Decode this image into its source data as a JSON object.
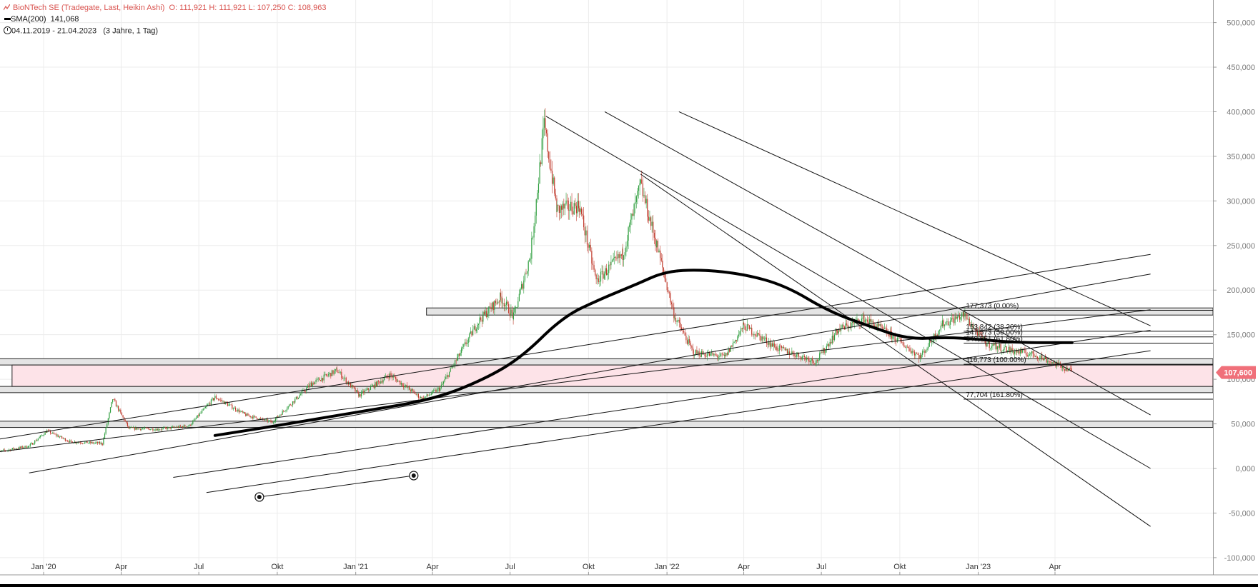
{
  "legend": {
    "instrument": "BioNTech SE (Tradegate, Last, Heikin Ashi)",
    "ohlc": "O: 111,921  H: 111,921  L: 107,250  C: 108,963",
    "sma_label": "SMA(200)",
    "sma_value": "141,068",
    "range": "04.11.2019 - 21.04.2023",
    "interval": "(3 Jahre, 1 Tag)"
  },
  "colors": {
    "up": "#2e9e3e",
    "down": "#c0392b",
    "sma": "#000000",
    "price_label_bg": "#f0707a",
    "zone_fill": "#fde3e8",
    "zone_border": "#222222",
    "band_fill": "#e4e4e4"
  },
  "current_price_label": "107,600",
  "chart_data": {
    "type": "candlestick",
    "title": "BioNTech SE (Tradegate, Last, Heikin Ashi)",
    "x_range": [
      "2019-11-04",
      "2023-04-21"
    ],
    "ylim": [
      -110000,
      510000
    ],
    "y_ticks": [
      -100000,
      -50000,
      0,
      50000,
      100000,
      150000,
      200000,
      250000,
      300000,
      350000,
      400000,
      450000,
      500000
    ],
    "y_tick_labels": [
      "-100,000",
      "-50,000",
      "0,000",
      "50,000",
      "100,000",
      "150,000",
      "200,000",
      "250,000",
      "300,000",
      "350,000",
      "400,000",
      "450,000",
      "500,000"
    ],
    "x_ticks": [
      {
        "date": "2020-01-01",
        "label": "Jan '20"
      },
      {
        "date": "2020-04-01",
        "label": "Apr"
      },
      {
        "date": "2020-07-01",
        "label": "Jul"
      },
      {
        "date": "2020-10-01",
        "label": "Okt"
      },
      {
        "date": "2021-01-01",
        "label": "Jan '21"
      },
      {
        "date": "2021-04-01",
        "label": "Apr"
      },
      {
        "date": "2021-07-01",
        "label": "Jul"
      },
      {
        "date": "2021-10-01",
        "label": "Okt"
      },
      {
        "date": "2022-01-01",
        "label": "Jan '22"
      },
      {
        "date": "2022-04-01",
        "label": "Apr"
      },
      {
        "date": "2022-07-01",
        "label": "Jul"
      },
      {
        "date": "2022-10-01",
        "label": "Okt"
      },
      {
        "date": "2023-01-01",
        "label": "Jan '23"
      },
      {
        "date": "2023-04-01",
        "label": "Apr"
      }
    ],
    "price_path": [
      [
        "2019-11-04",
        18000
      ],
      [
        "2019-12-15",
        25000
      ],
      [
        "2020-01-05",
        42000
      ],
      [
        "2020-02-01",
        30000
      ],
      [
        "2020-03-10",
        28000
      ],
      [
        "2020-03-22",
        78000
      ],
      [
        "2020-04-10",
        45000
      ],
      [
        "2020-05-15",
        44000
      ],
      [
        "2020-06-20",
        48000
      ],
      [
        "2020-07-20",
        80000
      ],
      [
        "2020-08-25",
        60000
      ],
      [
        "2020-09-25",
        52000
      ],
      [
        "2020-11-10",
        95000
      ],
      [
        "2020-12-10",
        110000
      ],
      [
        "2021-01-05",
        82000
      ],
      [
        "2021-02-10",
        105000
      ],
      [
        "2021-03-20",
        78000
      ],
      [
        "2021-04-10",
        90000
      ],
      [
        "2021-05-01",
        125000
      ],
      [
        "2021-05-25",
        165000
      ],
      [
        "2021-06-20",
        192000
      ],
      [
        "2021-07-05",
        170000
      ],
      [
        "2021-07-25",
        240000
      ],
      [
        "2021-08-10",
        385000
      ],
      [
        "2021-08-25",
        290000
      ],
      [
        "2021-09-20",
        295000
      ],
      [
        "2021-10-10",
        210000
      ],
      [
        "2021-11-10",
        240000
      ],
      [
        "2021-12-01",
        318000
      ],
      [
        "2021-12-20",
        250000
      ],
      [
        "2022-01-10",
        170000
      ],
      [
        "2022-02-01",
        130000
      ],
      [
        "2022-03-10",
        125000
      ],
      [
        "2022-04-01",
        160000
      ],
      [
        "2022-05-10",
        135000
      ],
      [
        "2022-06-25",
        120000
      ],
      [
        "2022-07-20",
        155000
      ],
      [
        "2022-08-20",
        168000
      ],
      [
        "2022-09-20",
        150000
      ],
      [
        "2022-10-25",
        125000
      ],
      [
        "2022-11-20",
        162000
      ],
      [
        "2022-12-15",
        172000
      ],
      [
        "2023-01-10",
        140000
      ],
      [
        "2023-02-10",
        132000
      ],
      [
        "2023-03-10",
        127000
      ],
      [
        "2023-04-21",
        109000
      ]
    ],
    "sma200": {
      "name": "SMA(200)",
      "points": [
        [
          "2020-07-20",
          37000
        ],
        [
          "2020-10-01",
          48000
        ],
        [
          "2021-01-01",
          63000
        ],
        [
          "2021-04-01",
          77000
        ],
        [
          "2021-06-01",
          100000
        ],
        [
          "2021-07-15",
          125000
        ],
        [
          "2021-09-01",
          170000
        ],
        [
          "2021-10-15",
          190000
        ],
        [
          "2021-11-25",
          206000
        ],
        [
          "2021-12-30",
          221000
        ],
        [
          "2022-02-10",
          223000
        ],
        [
          "2022-04-01",
          218000
        ],
        [
          "2022-05-20",
          205000
        ],
        [
          "2022-07-10",
          176000
        ],
        [
          "2022-08-25",
          160000
        ],
        [
          "2022-10-10",
          145000
        ],
        [
          "2022-11-25",
          147000
        ],
        [
          "2022-12-30",
          145000
        ],
        [
          "2023-02-15",
          141000
        ],
        [
          "2023-04-21",
          141068
        ]
      ]
    },
    "horizontal_bands": [
      {
        "from": "2021-03-25",
        "y1": 172000,
        "y2": 180000
      },
      {
        "from": "2019-11-04",
        "y1": 116000,
        "y2": 123000
      },
      {
        "from": "2019-11-10",
        "y1": 85000,
        "y2": 92000
      },
      {
        "from": "2019-11-06",
        "y1": 46000,
        "y2": 53000
      }
    ],
    "zone": {
      "from": "2019-11-25",
      "y1": 92000,
      "y2": 116000
    },
    "fibonacci": {
      "from": "2022-12-15",
      "levels": [
        {
          "value": 177373,
          "label": "177,373 (0.00%)"
        },
        {
          "value": 153842,
          "label": "153,842 (38.20%)"
        },
        {
          "value": 147573,
          "label": "147,573 (50.00%)"
        },
        {
          "value": 140551,
          "label": "140,551 (61.80%)"
        },
        {
          "value": 116773,
          "label": "116,773 (100.00%)"
        },
        {
          "value": 77704,
          "label": "77,704 (161.80%)"
        }
      ]
    },
    "trend_lines": [
      [
        [
          "2021-08-12",
          395000
        ],
        [
          "2023-07-22",
          0
        ]
      ],
      [
        [
          "2021-10-20",
          400000
        ],
        [
          "2023-07-22",
          60000
        ]
      ],
      [
        [
          "2022-01-15",
          400000
        ],
        [
          "2023-07-22",
          160000
        ]
      ],
      [
        [
          "2021-12-01",
          330000
        ],
        [
          "2023-07-22",
          -65000
        ]
      ],
      [
        [
          "2019-11-04",
          32000
        ],
        [
          "2023-07-22",
          240000
        ]
      ],
      [
        [
          "2019-11-04",
          18000
        ],
        [
          "2023-07-22",
          178000
        ]
      ],
      [
        [
          "2019-12-15",
          -5000
        ],
        [
          "2023-07-22",
          218000
        ]
      ],
      [
        [
          "2020-06-01",
          -10000
        ],
        [
          "2023-07-22",
          155000
        ]
      ],
      [
        [
          "2020-07-10",
          -27000
        ],
        [
          "2023-07-22",
          132000
        ]
      ],
      [
        [
          "2020-09-10",
          -32000
        ],
        [
          "2021-03-10",
          -8000
        ]
      ]
    ],
    "markers": [
      {
        "date": "2020-09-10",
        "value": -32000
      },
      {
        "date": "2021-03-10",
        "value": -8000
      }
    ],
    "current_price": 107600
  }
}
